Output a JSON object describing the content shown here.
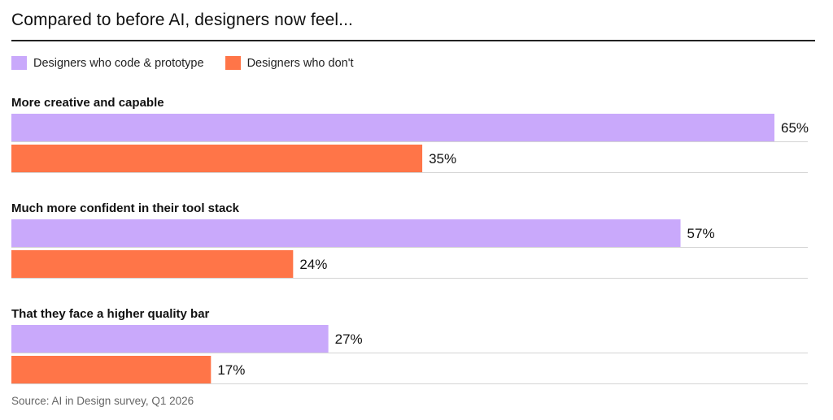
{
  "title": "Compared to before AI, designers now feel...",
  "source": "Source: AI in Design survey, Q1 2026",
  "legend": [
    {
      "label": "Designers who code & prototype",
      "color": "#c9a9fb"
    },
    {
      "label": "Designers who don't",
      "color": "#ff7548"
    }
  ],
  "chart_data": {
    "type": "bar",
    "orientation": "horizontal",
    "categories": [
      "More creative and capable",
      "Much more confident in their tool stack",
      "That they face a higher quality bar"
    ],
    "series": [
      {
        "name": "Designers who code & prototype",
        "values": [
          65,
          57,
          27
        ],
        "color": "#c9a9fb"
      },
      {
        "name": "Designers who don't",
        "values": [
          35,
          24,
          17
        ],
        "color": "#ff7548"
      }
    ],
    "value_format": "{v}%",
    "xlim": [
      0,
      65
    ],
    "grid": false,
    "legend_position": "top-left"
  }
}
